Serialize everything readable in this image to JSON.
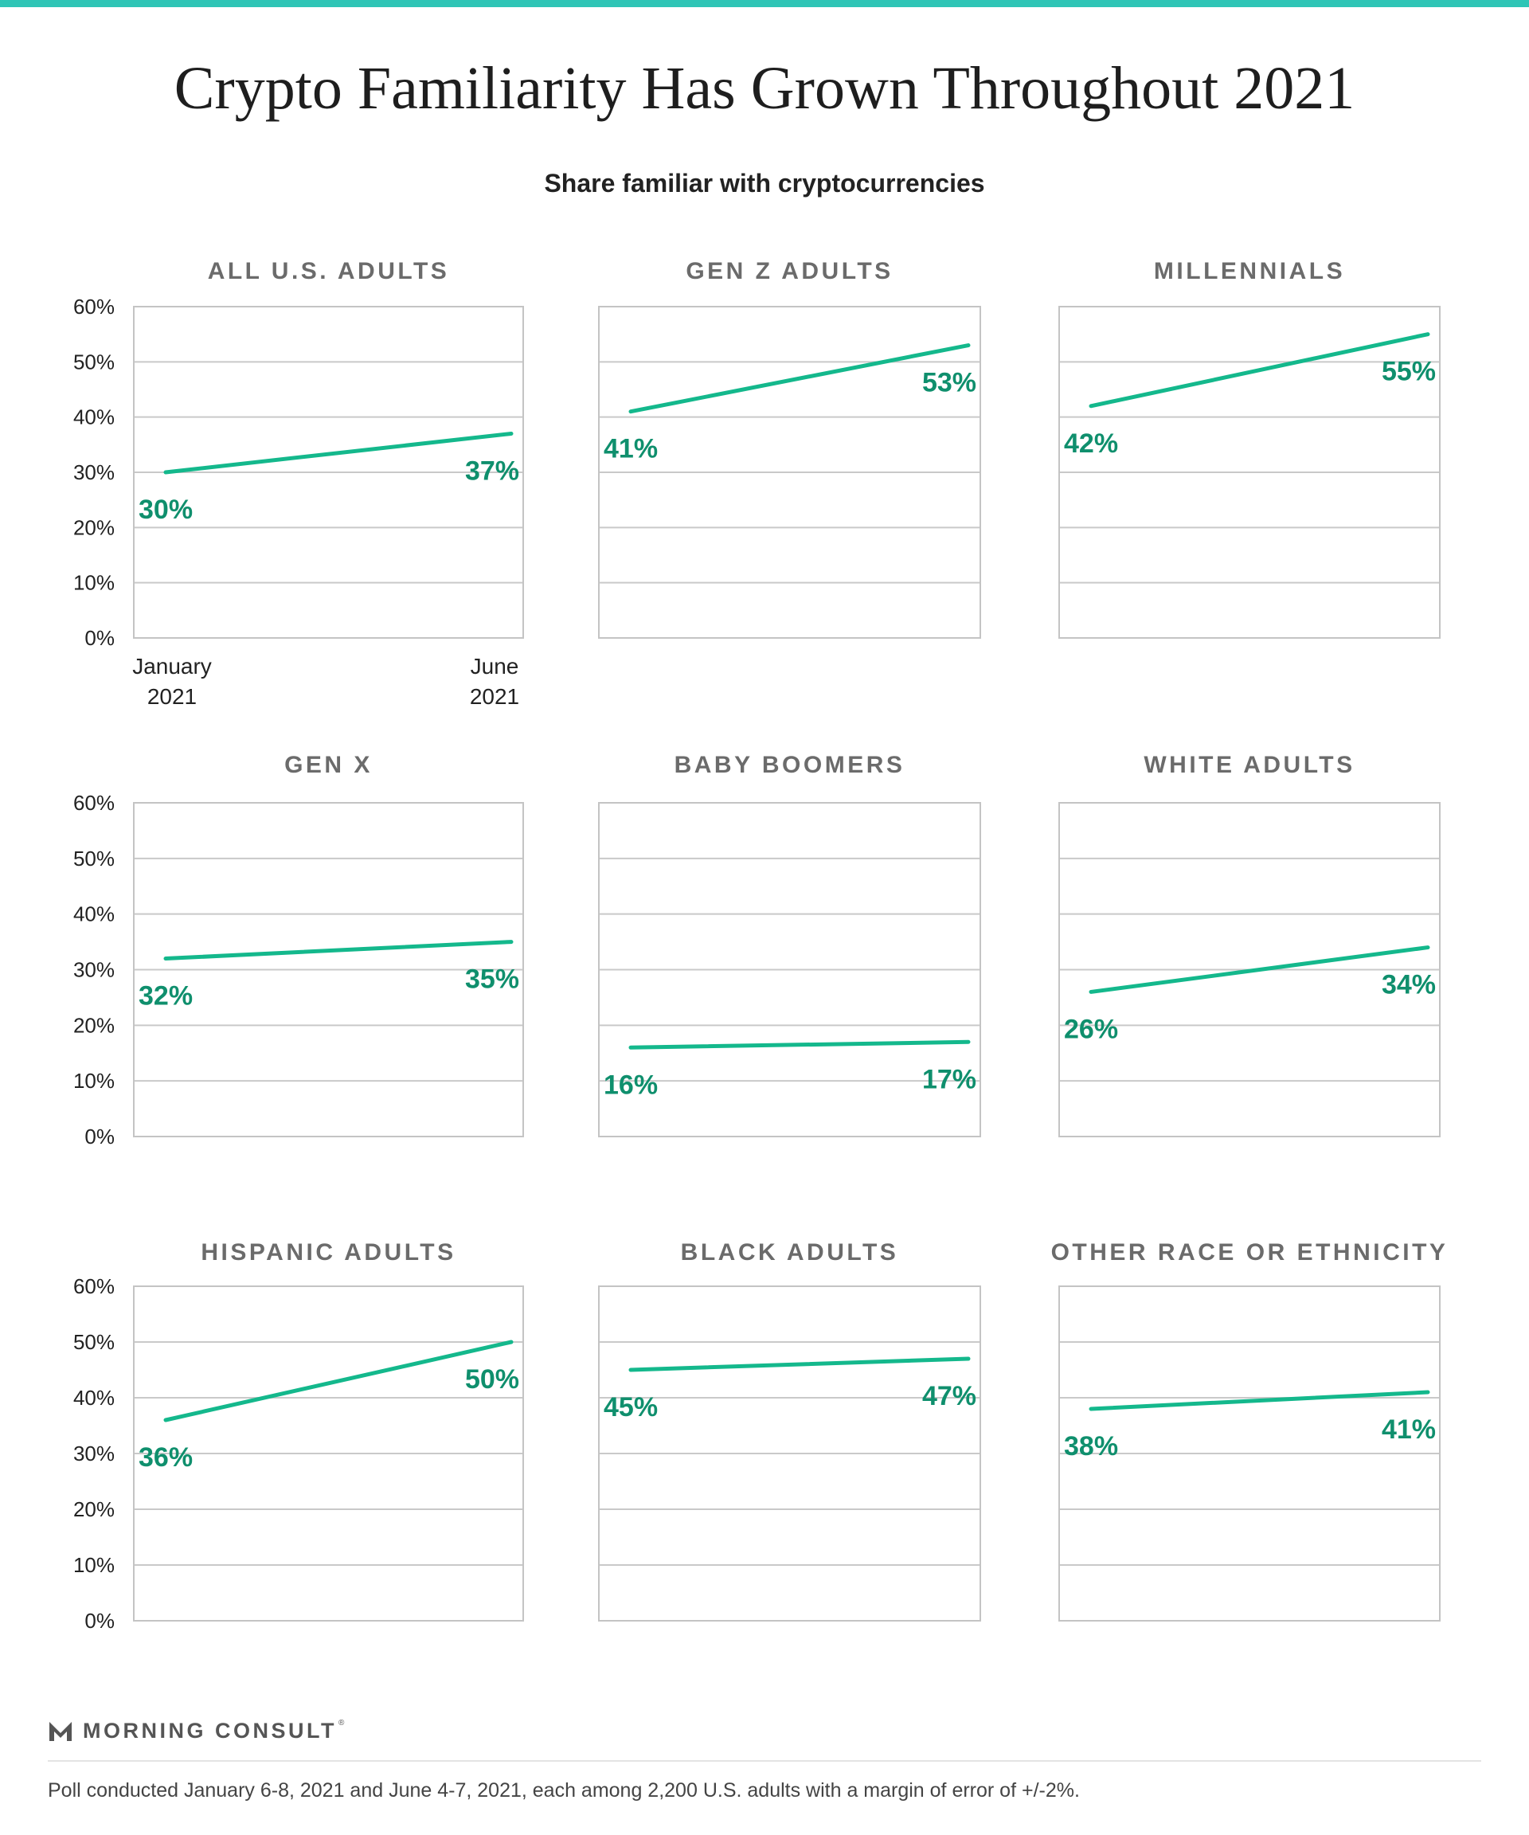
{
  "title": "Crypto Familiarity Has Grown Throughout 2021",
  "subtitle": "Share familiar with cryptocurrencies",
  "colors": {
    "accent_bar": "#2fc5b6",
    "line": "#14b88c",
    "label": "#0f8f6d",
    "panel_title": "#6b6b6b"
  },
  "chart_data": [
    {
      "type": "line",
      "title": "ALL U.S. ADULTS",
      "x": [
        "January 2021",
        "June 2021"
      ],
      "x_tick_lines": [
        [
          "January",
          "2021"
        ],
        [
          "June",
          "2021"
        ]
      ],
      "show_x_ticks": true,
      "show_y_ticks": true,
      "values": [
        30,
        37
      ],
      "value_labels": [
        "30%",
        "37%"
      ],
      "ylim": [
        0,
        60
      ],
      "yticks": [
        "0%",
        "10%",
        "20%",
        "30%",
        "40%",
        "50%",
        "60%"
      ],
      "grid": true
    },
    {
      "type": "line",
      "title": "GEN Z ADULTS",
      "x": [
        "January 2021",
        "June 2021"
      ],
      "show_x_ticks": false,
      "show_y_ticks": false,
      "values": [
        41,
        53
      ],
      "value_labels": [
        "41%",
        "53%"
      ],
      "ylim": [
        0,
        60
      ],
      "grid": true
    },
    {
      "type": "line",
      "title": "MILLENNIALS",
      "x": [
        "January 2021",
        "June 2021"
      ],
      "show_x_ticks": false,
      "show_y_ticks": false,
      "values": [
        42,
        55
      ],
      "value_labels": [
        "42%",
        "55%"
      ],
      "ylim": [
        0,
        60
      ],
      "grid": true
    },
    {
      "type": "line",
      "title": "GEN X",
      "x": [
        "January 2021",
        "June 2021"
      ],
      "show_x_ticks": false,
      "show_y_ticks": true,
      "values": [
        32,
        35
      ],
      "value_labels": [
        "32%",
        "35%"
      ],
      "ylim": [
        0,
        60
      ],
      "yticks": [
        "0%",
        "10%",
        "20%",
        "30%",
        "40%",
        "50%",
        "60%"
      ],
      "grid": true
    },
    {
      "type": "line",
      "title": "BABY BOOMERS",
      "x": [
        "January 2021",
        "June 2021"
      ],
      "show_x_ticks": false,
      "show_y_ticks": false,
      "values": [
        16,
        17
      ],
      "value_labels": [
        "16%",
        "17%"
      ],
      "ylim": [
        0,
        60
      ],
      "grid": true
    },
    {
      "type": "line",
      "title": "WHITE ADULTS",
      "x": [
        "January 2021",
        "June 2021"
      ],
      "show_x_ticks": false,
      "show_y_ticks": false,
      "values": [
        26,
        34
      ],
      "value_labels": [
        "26%",
        "34%"
      ],
      "ylim": [
        0,
        60
      ],
      "grid": true
    },
    {
      "type": "line",
      "title": "HISPANIC ADULTS",
      "x": [
        "January 2021",
        "June 2021"
      ],
      "show_x_ticks": false,
      "show_y_ticks": true,
      "values": [
        36,
        50
      ],
      "value_labels": [
        "36%",
        "50%"
      ],
      "ylim": [
        0,
        60
      ],
      "yticks": [
        "0%",
        "10%",
        "20%",
        "30%",
        "40%",
        "50%",
        "60%"
      ],
      "grid": true
    },
    {
      "type": "line",
      "title": "BLACK ADULTS",
      "x": [
        "January 2021",
        "June 2021"
      ],
      "show_x_ticks": false,
      "show_y_ticks": false,
      "values": [
        45,
        47
      ],
      "value_labels": [
        "45%",
        "47%"
      ],
      "ylim": [
        0,
        60
      ],
      "grid": true
    },
    {
      "type": "line",
      "title": "OTHER RACE OR ETHNICITY",
      "x": [
        "January 2021",
        "June 2021"
      ],
      "show_x_ticks": false,
      "show_y_ticks": false,
      "values": [
        38,
        41
      ],
      "value_labels": [
        "38%",
        "41%"
      ],
      "ylim": [
        0,
        60
      ],
      "grid": true
    }
  ],
  "footer": {
    "logo_text": "MORNING CONSULT",
    "logo_mark": "®",
    "source": "Poll conducted January  6-8, 2021 and June 4-7, 2021, each among 2,200 U.S. adults with a margin of error of +/-2%."
  }
}
